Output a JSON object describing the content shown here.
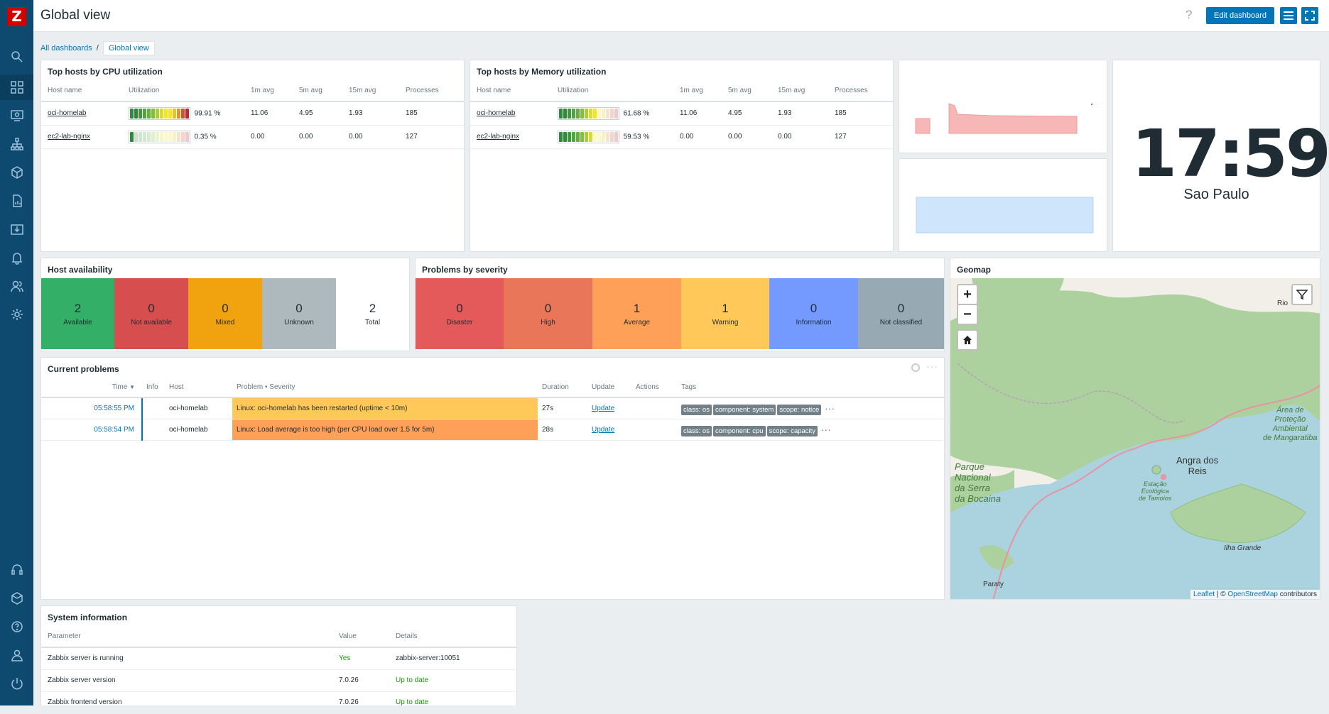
{
  "app": {
    "logo": "Z",
    "title": "Global view",
    "help": "?",
    "edit_dashboard": "Edit dashboard"
  },
  "breadcrumb": {
    "root": "All dashboards",
    "sep": "/",
    "current": "Global view"
  },
  "cpu": {
    "title": "Top hosts by CPU utilization",
    "headers": [
      "Host name",
      "Utilization",
      "1m avg",
      "5m avg",
      "15m avg",
      "Processes"
    ],
    "rows": [
      {
        "host": "oci-homelab",
        "util": "99.91 %",
        "util_value": 99.91,
        "m1": "11.06",
        "m5": "4.95",
        "m15": "1.93",
        "proc": "185"
      },
      {
        "host": "ec2-lab-nginx",
        "util": "0.35 %",
        "util_value": 0.35,
        "m1": "0.00",
        "m5": "0.00",
        "m15": "0.00",
        "proc": "127"
      }
    ]
  },
  "mem": {
    "title": "Top hosts by Memory utilization",
    "headers": [
      "Host name",
      "Utilization",
      "1m avg",
      "5m avg",
      "15m avg",
      "Processes"
    ],
    "rows": [
      {
        "host": "oci-homelab",
        "util": "61.68 %",
        "util_value": 61.68,
        "m1": "11.06",
        "m5": "4.95",
        "m15": "1.93",
        "proc": "185"
      },
      {
        "host": "ec2-lab-nginx",
        "util": "59.53 %",
        "util_value": 59.53,
        "m1": "0.00",
        "m5": "0.00",
        "m15": "0.00",
        "proc": "127"
      }
    ]
  },
  "clock": {
    "time": "17:59",
    "zone": "Sao Paulo"
  },
  "availability": {
    "title": "Host availability",
    "tiles": [
      {
        "n": "2",
        "label": "Available",
        "color": "#34af67"
      },
      {
        "n": "0",
        "label": "Not available",
        "color": "#d64e4e"
      },
      {
        "n": "0",
        "label": "Mixed",
        "color": "#f0a30e"
      },
      {
        "n": "0",
        "label": "Unknown",
        "color": "#aeb9be"
      },
      {
        "n": "2",
        "label": "Total",
        "color": "#ffffff"
      }
    ]
  },
  "severity": {
    "title": "Problems by severity",
    "tiles": [
      {
        "n": "0",
        "label": "Disaster",
        "color": "#e45959"
      },
      {
        "n": "0",
        "label": "High",
        "color": "#e97659"
      },
      {
        "n": "1",
        "label": "Average",
        "color": "#ffa059"
      },
      {
        "n": "1",
        "label": "Warning",
        "color": "#ffc859"
      },
      {
        "n": "0",
        "label": "Information",
        "color": "#7499ff"
      },
      {
        "n": "0",
        "label": "Not classified",
        "color": "#97aab3"
      }
    ]
  },
  "geomap": {
    "title": "Geomap",
    "zoom_in": "+",
    "zoom_out": "−",
    "attribution_leaflet": "Leaflet",
    "attribution_sep": " | © ",
    "attribution_osm": "OpenStreetMap",
    "attribution_tail": " contributors",
    "labels": {
      "rio": "Rio",
      "parque": "Parque\nNacional\nda Serra\nda Bocaina",
      "angra": "Angra dos\nReis",
      "estacao": "Estação\nEcológica\nde Tamoios",
      "area": "Área de\nProteção\nAmbiental\nde Mangaratiba",
      "ilha": "Ilha Grande",
      "paraty": "Paraty"
    }
  },
  "problems": {
    "title": "Current problems",
    "headers": {
      "time": "Time",
      "info": "Info",
      "host": "Host",
      "problem": "Problem • Severity",
      "duration": "Duration",
      "update": "Update",
      "actions": "Actions",
      "tags": "Tags"
    },
    "rows": [
      {
        "time": "05:58:55 PM",
        "host": "oci-homelab",
        "problem": "Linux: oci-homelab has been restarted (uptime < 10m)",
        "color": "#ffc859",
        "duration": "27s",
        "update": "Update",
        "tags": [
          "class: os",
          "component: system",
          "scope: notice"
        ]
      },
      {
        "time": "05:58:54 PM",
        "host": "oci-homelab",
        "problem": "Linux: Load average is too high (per CPU load over 1.5 for 5m)",
        "color": "#ffa059",
        "duration": "28s",
        "update": "Update",
        "tags": [
          "class: os",
          "component: cpu",
          "scope: capacity"
        ]
      }
    ]
  },
  "sysinfo": {
    "title": "System information",
    "headers": [
      "Parameter",
      "Value",
      "Details"
    ],
    "rows": [
      {
        "param": "Zabbix server is running",
        "value": "Yes",
        "details": "zabbix-server:10051"
      },
      {
        "param": "Zabbix server version",
        "value": "7.0.26",
        "details": "Up to date"
      },
      {
        "param": "Zabbix frontend version",
        "value": "7.0.26",
        "details": "Up to date"
      }
    ]
  }
}
